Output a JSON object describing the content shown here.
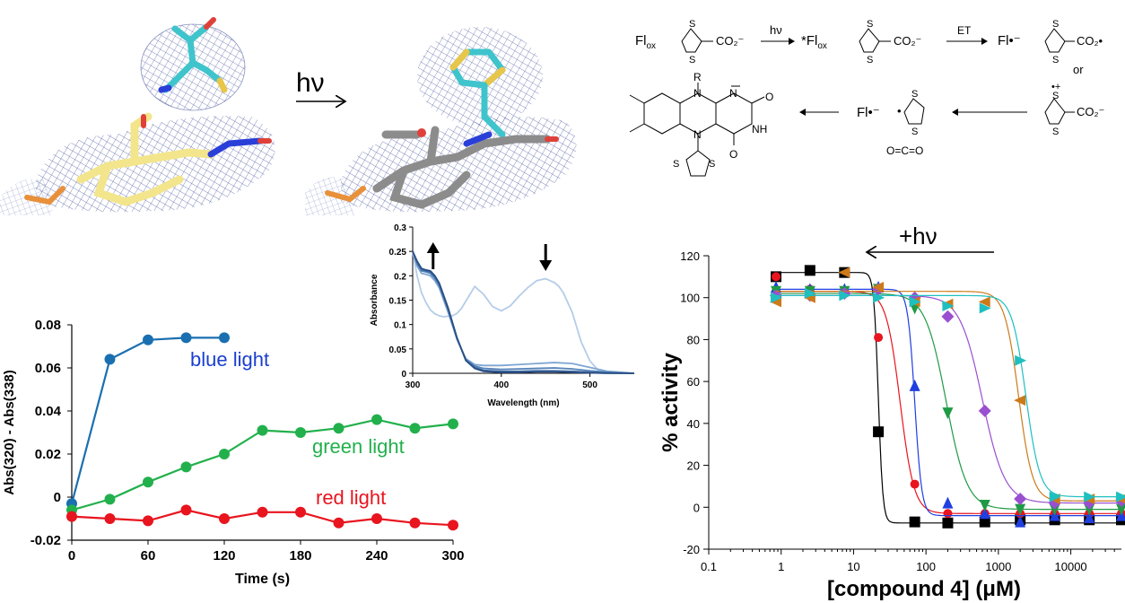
{
  "colors": {
    "blue": "#1a6fb0",
    "blue_text": "#1a3fd0",
    "green": "#22b04c",
    "red": "#e8141e",
    "mesh": "#3f4f9a",
    "carbon_yellow": "#f3e58c",
    "carbon_gray": "#8c8c8c",
    "carbon_cyan": "#3fc4cc",
    "sulfur": "#e8c64a",
    "nitrogen": "#2a3fd8",
    "oxygen": "#e0403a",
    "phosphorus": "#e8903a"
  },
  "structure_panel": {
    "arrow_label": "hν"
  },
  "scheme": {
    "row1": {
      "flox": "Fl",
      "flox_sub": "ox",
      "hv": "hν",
      "star_flox": "*Fl",
      "star_flox_sub": "ox",
      "et": "ET",
      "fl_radical": "Fl•⁻",
      "or": "or"
    },
    "labels": {
      "s": "S",
      "co2minus": "CO₂⁻",
      "co2radical": "CO₂•",
      "r": "R",
      "n": "N",
      "nh": "NH",
      "o": "O",
      "nminus": "N",
      "fl_radical": "Fl•⁻",
      "co2": "O=C=O",
      "radical_cation": "•+",
      "radical_dot": "•"
    }
  },
  "chart_data": [
    {
      "type": "line",
      "xlabel": "Time (s)",
      "ylabel": "Abs(320) - Abs(338)",
      "xlim": [
        0,
        300
      ],
      "ylim": [
        -0.02,
        0.08
      ],
      "xticks": [
        0,
        60,
        120,
        180,
        240,
        300
      ],
      "yticks": [
        -0.02,
        0,
        0.02,
        0.04,
        0.06,
        0.08
      ],
      "ytick_labels": [
        "-0.02",
        "0",
        "0.02",
        "0.04",
        "0.06",
        "0.08"
      ],
      "grid": false,
      "series": [
        {
          "name": "blue light",
          "color": "#1a6fb0",
          "label_color": "#1a3fd0",
          "x": [
            0,
            30,
            60,
            90,
            120
          ],
          "y": [
            -0.003,
            0.064,
            0.073,
            0.074,
            0.074
          ]
        },
        {
          "name": "green light",
          "color": "#22b04c",
          "label_color": "#22b04c",
          "x": [
            0,
            30,
            60,
            90,
            120,
            150,
            180,
            210,
            240,
            270,
            300
          ],
          "y": [
            -0.006,
            -0.001,
            0.007,
            0.014,
            0.02,
            0.031,
            0.03,
            0.032,
            0.036,
            0.032,
            0.034
          ]
        },
        {
          "name": "red light",
          "color": "#e8141e",
          "label_color": "#e8141e",
          "x": [
            0,
            30,
            60,
            90,
            120,
            150,
            180,
            210,
            240,
            270,
            300
          ],
          "y": [
            -0.009,
            -0.01,
            -0.011,
            -0.006,
            -0.01,
            -0.007,
            -0.007,
            -0.012,
            -0.01,
            -0.012,
            -0.013
          ]
        }
      ]
    },
    {
      "type": "line",
      "xlabel": "Wavelength (nm)",
      "ylabel": "Absorbance",
      "xlim": [
        300,
        550
      ],
      "ylim": [
        0,
        0.3
      ],
      "xticks": [
        300,
        400,
        500
      ],
      "yticks": [
        0,
        0.05,
        0.1,
        0.15,
        0.2,
        0.25,
        0.3
      ],
      "ytick_labels": [
        "0",
        "0.05",
        "0.1",
        "0.15",
        "0.2",
        "0.25",
        "0.3"
      ],
      "annotations": [
        "up-arrow at 320 nm",
        "down-arrow at 450 nm"
      ],
      "series": [
        {
          "x": [
            300,
            305,
            310,
            315,
            320,
            325,
            330,
            335,
            340,
            345,
            350,
            355,
            360,
            370,
            380,
            390,
            400,
            410,
            420,
            430,
            440,
            450,
            455,
            460,
            465,
            470,
            480,
            490,
            500,
            510,
            520,
            530,
            540,
            550
          ],
          "y": [
            0.25,
            0.2,
            0.165,
            0.145,
            0.13,
            0.122,
            0.118,
            0.116,
            0.117,
            0.118,
            0.123,
            0.133,
            0.148,
            0.178,
            0.162,
            0.137,
            0.128,
            0.138,
            0.158,
            0.176,
            0.19,
            0.194,
            0.19,
            0.186,
            0.178,
            0.165,
            0.125,
            0.065,
            0.025,
            0.005,
            0.001,
            0,
            0,
            0
          ],
          "color": "#b5cde8"
        },
        {
          "x": [
            300,
            305,
            310,
            315,
            320,
            325,
            330,
            340,
            350,
            360,
            370,
            380,
            390,
            400,
            420,
            440,
            460,
            480,
            500,
            520,
            550
          ],
          "y": [
            0.25,
            0.22,
            0.205,
            0.203,
            0.2,
            0.19,
            0.175,
            0.125,
            0.07,
            0.03,
            0.018,
            0.016,
            0.016,
            0.016,
            0.018,
            0.02,
            0.022,
            0.02,
            0.012,
            0.004,
            0
          ],
          "color": "#7ea6d2"
        },
        {
          "x": [
            300,
            305,
            310,
            315,
            320,
            325,
            330,
            340,
            350,
            360,
            370,
            380,
            400,
            420,
            440,
            460,
            480,
            500,
            520,
            550
          ],
          "y": [
            0.25,
            0.225,
            0.21,
            0.208,
            0.205,
            0.195,
            0.18,
            0.13,
            0.07,
            0.028,
            0.015,
            0.01,
            0.008,
            0.009,
            0.01,
            0.011,
            0.009,
            0.005,
            0.002,
            0
          ],
          "color": "#5583b8"
        },
        {
          "x": [
            300,
            305,
            310,
            315,
            320,
            325,
            330,
            340,
            350,
            360,
            370,
            380,
            400,
            420,
            440,
            460,
            480,
            500,
            520,
            550
          ],
          "y": [
            0.25,
            0.228,
            0.213,
            0.21,
            0.208,
            0.198,
            0.183,
            0.132,
            0.072,
            0.027,
            0.012,
            0.006,
            0.004,
            0.004,
            0.005,
            0.005,
            0.004,
            0.002,
            0.001,
            0
          ],
          "color": "#3d6aa3"
        },
        {
          "x": [
            300,
            305,
            310,
            315,
            320,
            325,
            330,
            340,
            350,
            360,
            370,
            380,
            400,
            420,
            440,
            460,
            480,
            500,
            520,
            550
          ],
          "y": [
            0.25,
            0.23,
            0.215,
            0.212,
            0.21,
            0.2,
            0.185,
            0.134,
            0.073,
            0.026,
            0.01,
            0.004,
            0.002,
            0.002,
            0.003,
            0.003,
            0.002,
            0.001,
            0,
            0
          ],
          "color": "#2a4f86"
        }
      ]
    },
    {
      "type": "scatter",
      "xlabel": "[compound 4] (μM)",
      "ylabel": "% activity",
      "xscale": "log",
      "xlim": [
        0.1,
        50000
      ],
      "ylim": [
        -20,
        120
      ],
      "xticks": [
        0.1,
        1,
        10,
        100,
        1000,
        10000
      ],
      "xtick_labels": [
        "0.1",
        "1",
        "10",
        "100",
        "1000",
        "10000"
      ],
      "yticks": [
        -20,
        0,
        20,
        40,
        60,
        80,
        100,
        120
      ],
      "ytick_labels": [
        "-20",
        "0",
        "20",
        "40",
        "60",
        "80",
        "100",
        "120"
      ],
      "annotation": "+hν",
      "series": [
        {
          "color": "#000000",
          "marker": "square",
          "top": 112,
          "bottom": -7.5,
          "ic50": 22,
          "hill": 14,
          "x": [
            0.85,
            2.5,
            7.5,
            22,
            70,
            200,
            650,
            2000,
            6000,
            18000,
            50000
          ],
          "y": [
            110,
            113,
            112,
            36,
            -7,
            -7.5,
            -7,
            -6,
            -6,
            -6,
            -6
          ]
        },
        {
          "color": "#e8141e",
          "marker": "circle",
          "top": 103,
          "bottom": -3,
          "ic50": 44,
          "hill": 4.5,
          "x": [
            0.85,
            2.5,
            7.5,
            22,
            70,
            200,
            650,
            2000,
            6000,
            18000,
            50000
          ],
          "y": [
            110,
            104,
            103,
            81,
            11,
            -3,
            -3,
            -3,
            -3,
            -3,
            -3
          ]
        },
        {
          "color": "#1f3fe0",
          "marker": "triangle-up",
          "top": 104,
          "bottom": -4,
          "ic50": 70,
          "hill": 9,
          "x": [
            0.85,
            2.5,
            7.5,
            22,
            70,
            200,
            650,
            2000,
            6000,
            18000,
            50000
          ],
          "y": [
            105,
            104,
            104,
            105,
            58,
            2,
            -3,
            -7,
            -4,
            -5,
            -4
          ]
        },
        {
          "color": "#1f9a46",
          "marker": "triangle-down",
          "top": 102,
          "bottom": -1,
          "ic50": 190,
          "hill": 3,
          "x": [
            0.85,
            2.5,
            7.5,
            22,
            70,
            200,
            650,
            2000,
            6000,
            18000,
            50000
          ],
          "y": [
            103,
            103,
            103,
            104,
            95,
            45,
            1,
            -1,
            -1,
            -1,
            -1
          ]
        },
        {
          "color": "#9a4fd0",
          "marker": "diamond",
          "top": 101,
          "bottom": 2,
          "ic50": 600,
          "hill": 2.8,
          "x": [
            0.85,
            2.5,
            7.5,
            22,
            70,
            200,
            650,
            2000,
            6000,
            18000,
            50000
          ],
          "y": [
            101,
            101,
            102,
            104,
            100,
            91,
            46,
            4,
            2,
            2,
            3
          ]
        },
        {
          "color": "#cc7a1a",
          "marker": "triangle-left",
          "top": 103,
          "bottom": 3,
          "ic50": 1900,
          "hill": 4.5,
          "x": [
            0.85,
            2.5,
            7.5,
            22,
            70,
            200,
            650,
            2000,
            6000,
            18000,
            50000
          ],
          "y": [
            98,
            100,
            112,
            105,
            98,
            97,
            98,
            51,
            4,
            4,
            4
          ]
        },
        {
          "color": "#1fbfc0",
          "marker": "triangle-right",
          "top": 101,
          "bottom": 5,
          "ic50": 2400,
          "hill": 4.5,
          "x": [
            0.85,
            2.5,
            7.5,
            22,
            70,
            200,
            650,
            2000,
            6000,
            18000,
            50000
          ],
          "y": [
            100,
            102,
            101,
            100,
            98,
            96,
            95,
            70,
            5,
            5,
            5
          ]
        }
      ]
    }
  ]
}
